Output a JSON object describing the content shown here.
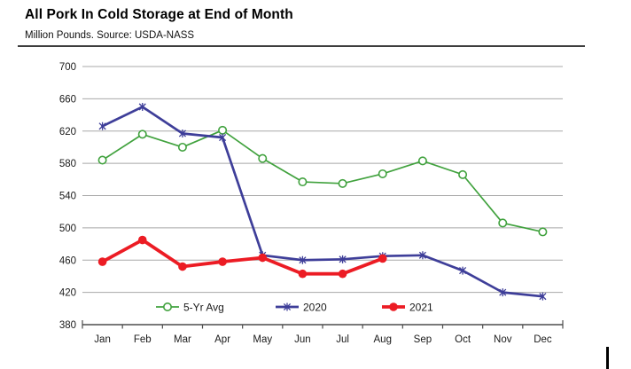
{
  "header": {
    "title": "All Pork In Cold Storage at End of Month",
    "subtitle": "Million Pounds.  Source: USDA-NASS"
  },
  "chart_data": {
    "type": "line",
    "title": "All Pork In Cold Storage at End of Month",
    "units_label": "Million Pounds",
    "source_label": "Source: USDA-NASS",
    "categories": [
      "Jan",
      "Feb",
      "Mar",
      "Apr",
      "May",
      "Jun",
      "Jul",
      "Aug",
      "Sep",
      "Oct",
      "Nov",
      "Dec"
    ],
    "series": [
      {
        "name": "5-Yr Avg",
        "color": "#41a23e",
        "marker": "open-circle",
        "line_width": 1.7,
        "values": [
          584,
          616,
          600,
          621,
          586,
          557,
          555,
          567,
          583,
          566,
          506,
          495
        ]
      },
      {
        "name": "2020",
        "color": "#3e3e99",
        "marker": "star-x",
        "line_width": 2.7,
        "values": [
          626,
          650,
          617,
          612,
          466,
          460,
          461,
          465,
          466,
          447,
          420,
          415
        ]
      },
      {
        "name": "2021",
        "color": "#ec1c24",
        "marker": "filled-circle",
        "line_width": 3.8,
        "values": [
          458,
          485,
          452,
          458,
          463,
          443,
          443,
          462
        ]
      }
    ],
    "ylim": [
      380,
      700
    ],
    "yticks": [
      380,
      420,
      460,
      500,
      540,
      580,
      620,
      660,
      700
    ],
    "grid": true,
    "legend_position": "bottom-inside",
    "legend_labels": [
      "5-Yr Avg",
      "2020",
      "2021"
    ]
  },
  "colors": {
    "gridline": "#a8a8a8",
    "axis": "#4d4d4d",
    "tick_text": "#1a1a1a",
    "header_rule": "#3d3d3d"
  }
}
